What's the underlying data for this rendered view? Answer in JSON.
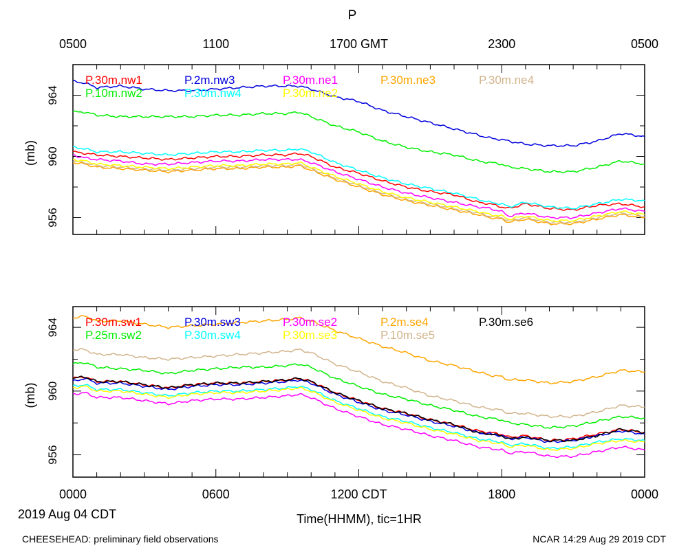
{
  "header": {
    "title": "P"
  },
  "footer": {
    "left": "CHEESEHEAD: preliminary field observations",
    "right": "NCAR 14:29 Aug 29 2019 CDT",
    "date": "2019 Aug 04 CDT",
    "xlabel": "Time(HHMM), tic=1HR"
  },
  "colors": {
    "red": "#ff0000",
    "blue": "#0000dd",
    "magenta": "#ff00ff",
    "orange": "#ffa500",
    "tan": "#d2b48c",
    "green": "#00ee00",
    "cyan": "#00ffff",
    "yellow": "#ffff00",
    "black": "#000000"
  },
  "chart_data": [
    {
      "type": "line",
      "title": "P",
      "ylabel": "(mb)",
      "top_axis_ticks": [
        "0500",
        "1100",
        "1700 GMT",
        "2300",
        "0500"
      ],
      "yticks": [
        956,
        960,
        964
      ],
      "ylim": [
        954.9,
        966.0
      ],
      "x_hours": [
        0,
        0.5,
        1,
        2,
        3,
        4,
        5,
        6,
        7,
        8,
        9,
        9.5,
        10,
        11,
        12,
        13,
        14,
        15,
        16,
        17,
        17.5,
        18,
        18.3,
        19,
        20,
        21,
        22,
        23,
        24
      ],
      "series": [
        {
          "name": "P.30m.nw1",
          "color": "red",
          "values": [
            960.3,
            960.2,
            960.1,
            960.0,
            959.9,
            959.8,
            959.9,
            960.0,
            960.0,
            960.1,
            960.1,
            960.2,
            960.0,
            959.3,
            958.9,
            958.4,
            958.0,
            957.7,
            957.5,
            957.0,
            956.9,
            956.7,
            956.6,
            956.9,
            956.6,
            956.5,
            956.8,
            956.9,
            956.7
          ]
        },
        {
          "name": "P.2m.nw3",
          "color": "blue",
          "values": [
            964.9,
            964.8,
            964.5,
            964.6,
            964.4,
            964.3,
            964.3,
            964.4,
            964.5,
            964.6,
            964.6,
            964.6,
            964.4,
            963.9,
            963.6,
            963.0,
            962.6,
            962.2,
            961.8,
            961.4,
            961.2,
            961.1,
            961.0,
            960.8,
            960.7,
            960.7,
            961.0,
            961.5,
            961.3
          ]
        },
        {
          "name": "P.30m.ne1",
          "color": "magenta",
          "values": [
            960.1,
            959.9,
            959.8,
            959.7,
            959.5,
            959.5,
            959.6,
            959.7,
            959.7,
            959.8,
            959.8,
            959.8,
            959.6,
            959.0,
            958.5,
            958.0,
            957.6,
            957.3,
            957.0,
            956.7,
            956.6,
            956.4,
            956.1,
            956.3,
            956.0,
            956.0,
            956.3,
            956.6,
            956.4
          ]
        },
        {
          "name": "P.30m.ne3",
          "color": "orange",
          "values": [
            959.6,
            959.5,
            959.3,
            959.2,
            959.1,
            959.0,
            959.1,
            959.2,
            959.2,
            959.3,
            959.3,
            959.4,
            959.1,
            958.5,
            958.0,
            957.5,
            957.1,
            956.8,
            956.5,
            956.2,
            956.0,
            955.9,
            955.7,
            955.9,
            955.6,
            955.6,
            955.9,
            956.2,
            956.0
          ]
        },
        {
          "name": "P.30m.ne4",
          "color": "tan",
          "values": [
            959.7,
            959.6,
            959.4,
            959.3,
            959.2,
            959.1,
            959.2,
            959.3,
            959.3,
            959.4,
            959.4,
            959.5,
            959.2,
            958.6,
            958.1,
            957.6,
            957.2,
            956.9,
            956.6,
            956.3,
            956.1,
            956.0,
            955.8,
            956.0,
            955.7,
            955.7,
            956.0,
            956.3,
            956.1
          ]
        },
        {
          "name": "P.10m.nw2",
          "color": "green",
          "values": [
            962.9,
            962.9,
            962.7,
            962.6,
            962.6,
            962.6,
            962.6,
            962.7,
            962.7,
            962.8,
            962.8,
            962.9,
            962.6,
            962.0,
            961.6,
            961.0,
            960.6,
            960.3,
            960.1,
            959.7,
            959.6,
            959.5,
            959.3,
            959.2,
            959.0,
            959.0,
            959.3,
            959.7,
            959.5
          ]
        },
        {
          "name": "P.30m.nw4",
          "color": "cyan",
          "values": [
            960.6,
            960.5,
            960.3,
            960.3,
            960.2,
            960.1,
            960.2,
            960.3,
            960.3,
            960.4,
            960.4,
            960.5,
            960.3,
            959.6,
            959.1,
            958.6,
            958.2,
            957.9,
            957.6,
            957.2,
            957.0,
            956.9,
            956.7,
            957.0,
            956.7,
            956.6,
            956.9,
            957.2,
            957.1
          ]
        },
        {
          "name": "P.30m.ne2",
          "color": "yellow",
          "values": [
            959.8,
            959.7,
            959.5,
            959.4,
            959.3,
            959.2,
            959.3,
            959.4,
            959.4,
            959.5,
            959.5,
            959.6,
            959.3,
            958.7,
            958.2,
            957.7,
            957.3,
            957.0,
            956.7,
            956.4,
            956.2,
            956.1,
            955.9,
            956.1,
            955.8,
            955.8,
            956.1,
            956.4,
            956.2
          ]
        }
      ]
    },
    {
      "type": "line",
      "ylabel": "(mb)",
      "bottom_axis_ticks": [
        "0000",
        "0600",
        "1200 CDT",
        "1800",
        "0000"
      ],
      "yticks": [
        956,
        960,
        964
      ],
      "ylim": [
        954.6,
        965.3
      ],
      "x_hours": [
        0,
        0.5,
        1,
        2,
        3,
        4,
        5,
        6,
        7,
        8,
        9,
        9.5,
        10,
        11,
        12,
        13,
        14,
        15,
        16,
        17,
        17.5,
        18,
        18.3,
        19,
        20,
        21,
        22,
        23,
        24
      ],
      "series": [
        {
          "name": "P.30m.sw1",
          "color": "red",
          "values": [
            960.8,
            960.9,
            960.6,
            960.6,
            960.4,
            960.2,
            960.4,
            960.5,
            960.5,
            960.6,
            960.7,
            960.8,
            960.6,
            959.9,
            959.4,
            958.9,
            958.6,
            958.2,
            957.9,
            957.5,
            957.4,
            957.3,
            957.1,
            957.2,
            956.9,
            957.0,
            957.3,
            957.6,
            957.4
          ]
        },
        {
          "name": "P.30m.sw3",
          "color": "blue",
          "values": [
            960.6,
            960.8,
            960.5,
            960.5,
            960.3,
            960.1,
            960.3,
            960.4,
            960.4,
            960.5,
            960.6,
            960.7,
            960.5,
            959.8,
            959.3,
            958.8,
            958.5,
            958.1,
            957.8,
            957.4,
            957.3,
            957.2,
            957.0,
            957.1,
            956.8,
            956.9,
            957.2,
            957.5,
            957.3
          ]
        },
        {
          "name": "P.30m.se2",
          "color": "magenta",
          "values": [
            959.8,
            959.9,
            959.6,
            959.6,
            959.4,
            959.2,
            959.4,
            959.5,
            959.5,
            959.6,
            959.7,
            959.8,
            959.6,
            958.9,
            958.4,
            957.9,
            957.6,
            957.2,
            956.9,
            956.5,
            956.4,
            956.3,
            956.1,
            956.2,
            955.9,
            955.9,
            956.2,
            956.5,
            956.3
          ]
        },
        {
          "name": "P.2m.se4",
          "color": "orange",
          "values": [
            964.6,
            964.7,
            964.4,
            964.4,
            964.2,
            964.0,
            964.1,
            964.2,
            964.3,
            964.4,
            964.5,
            964.6,
            964.4,
            963.8,
            963.3,
            962.8,
            962.4,
            961.9,
            961.6,
            961.2,
            961.0,
            960.9,
            960.7,
            960.7,
            960.5,
            960.6,
            960.9,
            961.3,
            961.2
          ]
        },
        {
          "name": "P.30m.se6",
          "color": "black",
          "values": [
            960.8,
            960.9,
            960.6,
            960.6,
            960.4,
            960.2,
            960.4,
            960.5,
            960.5,
            960.6,
            960.7,
            960.8,
            960.6,
            959.9,
            959.4,
            958.9,
            958.6,
            958.2,
            957.9,
            957.4,
            957.3,
            957.2,
            957.0,
            957.1,
            956.9,
            956.9,
            957.2,
            957.6,
            957.4
          ]
        },
        {
          "name": "P.25m.sw2",
          "color": "green",
          "values": [
            961.7,
            961.8,
            961.5,
            961.4,
            961.3,
            961.1,
            961.3,
            961.4,
            961.5,
            961.5,
            961.6,
            961.7,
            961.5,
            960.8,
            960.3,
            959.8,
            959.5,
            959.1,
            958.8,
            958.4,
            958.3,
            958.2,
            958.0,
            957.9,
            957.7,
            957.8,
            958.1,
            958.4,
            958.3
          ]
        },
        {
          "name": "P.30m.sw4",
          "color": "cyan",
          "values": [
            960.3,
            960.4,
            960.1,
            960.1,
            959.9,
            959.7,
            959.9,
            960.0,
            960.0,
            960.1,
            960.2,
            960.3,
            960.1,
            959.4,
            958.9,
            958.4,
            958.1,
            957.7,
            957.4,
            957.0,
            956.9,
            956.8,
            956.6,
            956.7,
            956.4,
            956.5,
            956.8,
            957.0,
            956.9
          ]
        },
        {
          "name": "P.30m.se3",
          "color": "yellow",
          "values": [
            960.2,
            960.3,
            960.0,
            960.0,
            959.8,
            959.6,
            959.8,
            959.9,
            959.9,
            960.0,
            960.1,
            960.2,
            960.0,
            959.3,
            958.8,
            958.3,
            958.0,
            957.6,
            957.3,
            956.9,
            956.8,
            956.7,
            956.5,
            956.6,
            956.3,
            956.4,
            956.7,
            956.9,
            956.8
          ]
        },
        {
          "name": "P.10m.se5",
          "color": "tan",
          "values": [
            962.6,
            962.6,
            962.3,
            962.3,
            962.1,
            962.0,
            962.1,
            962.2,
            962.3,
            962.4,
            962.5,
            962.6,
            962.4,
            961.7,
            961.2,
            960.6,
            960.2,
            959.7,
            959.4,
            959.0,
            958.9,
            958.8,
            958.6,
            958.6,
            958.4,
            958.4,
            958.7,
            959.1,
            959.0
          ]
        }
      ]
    }
  ]
}
